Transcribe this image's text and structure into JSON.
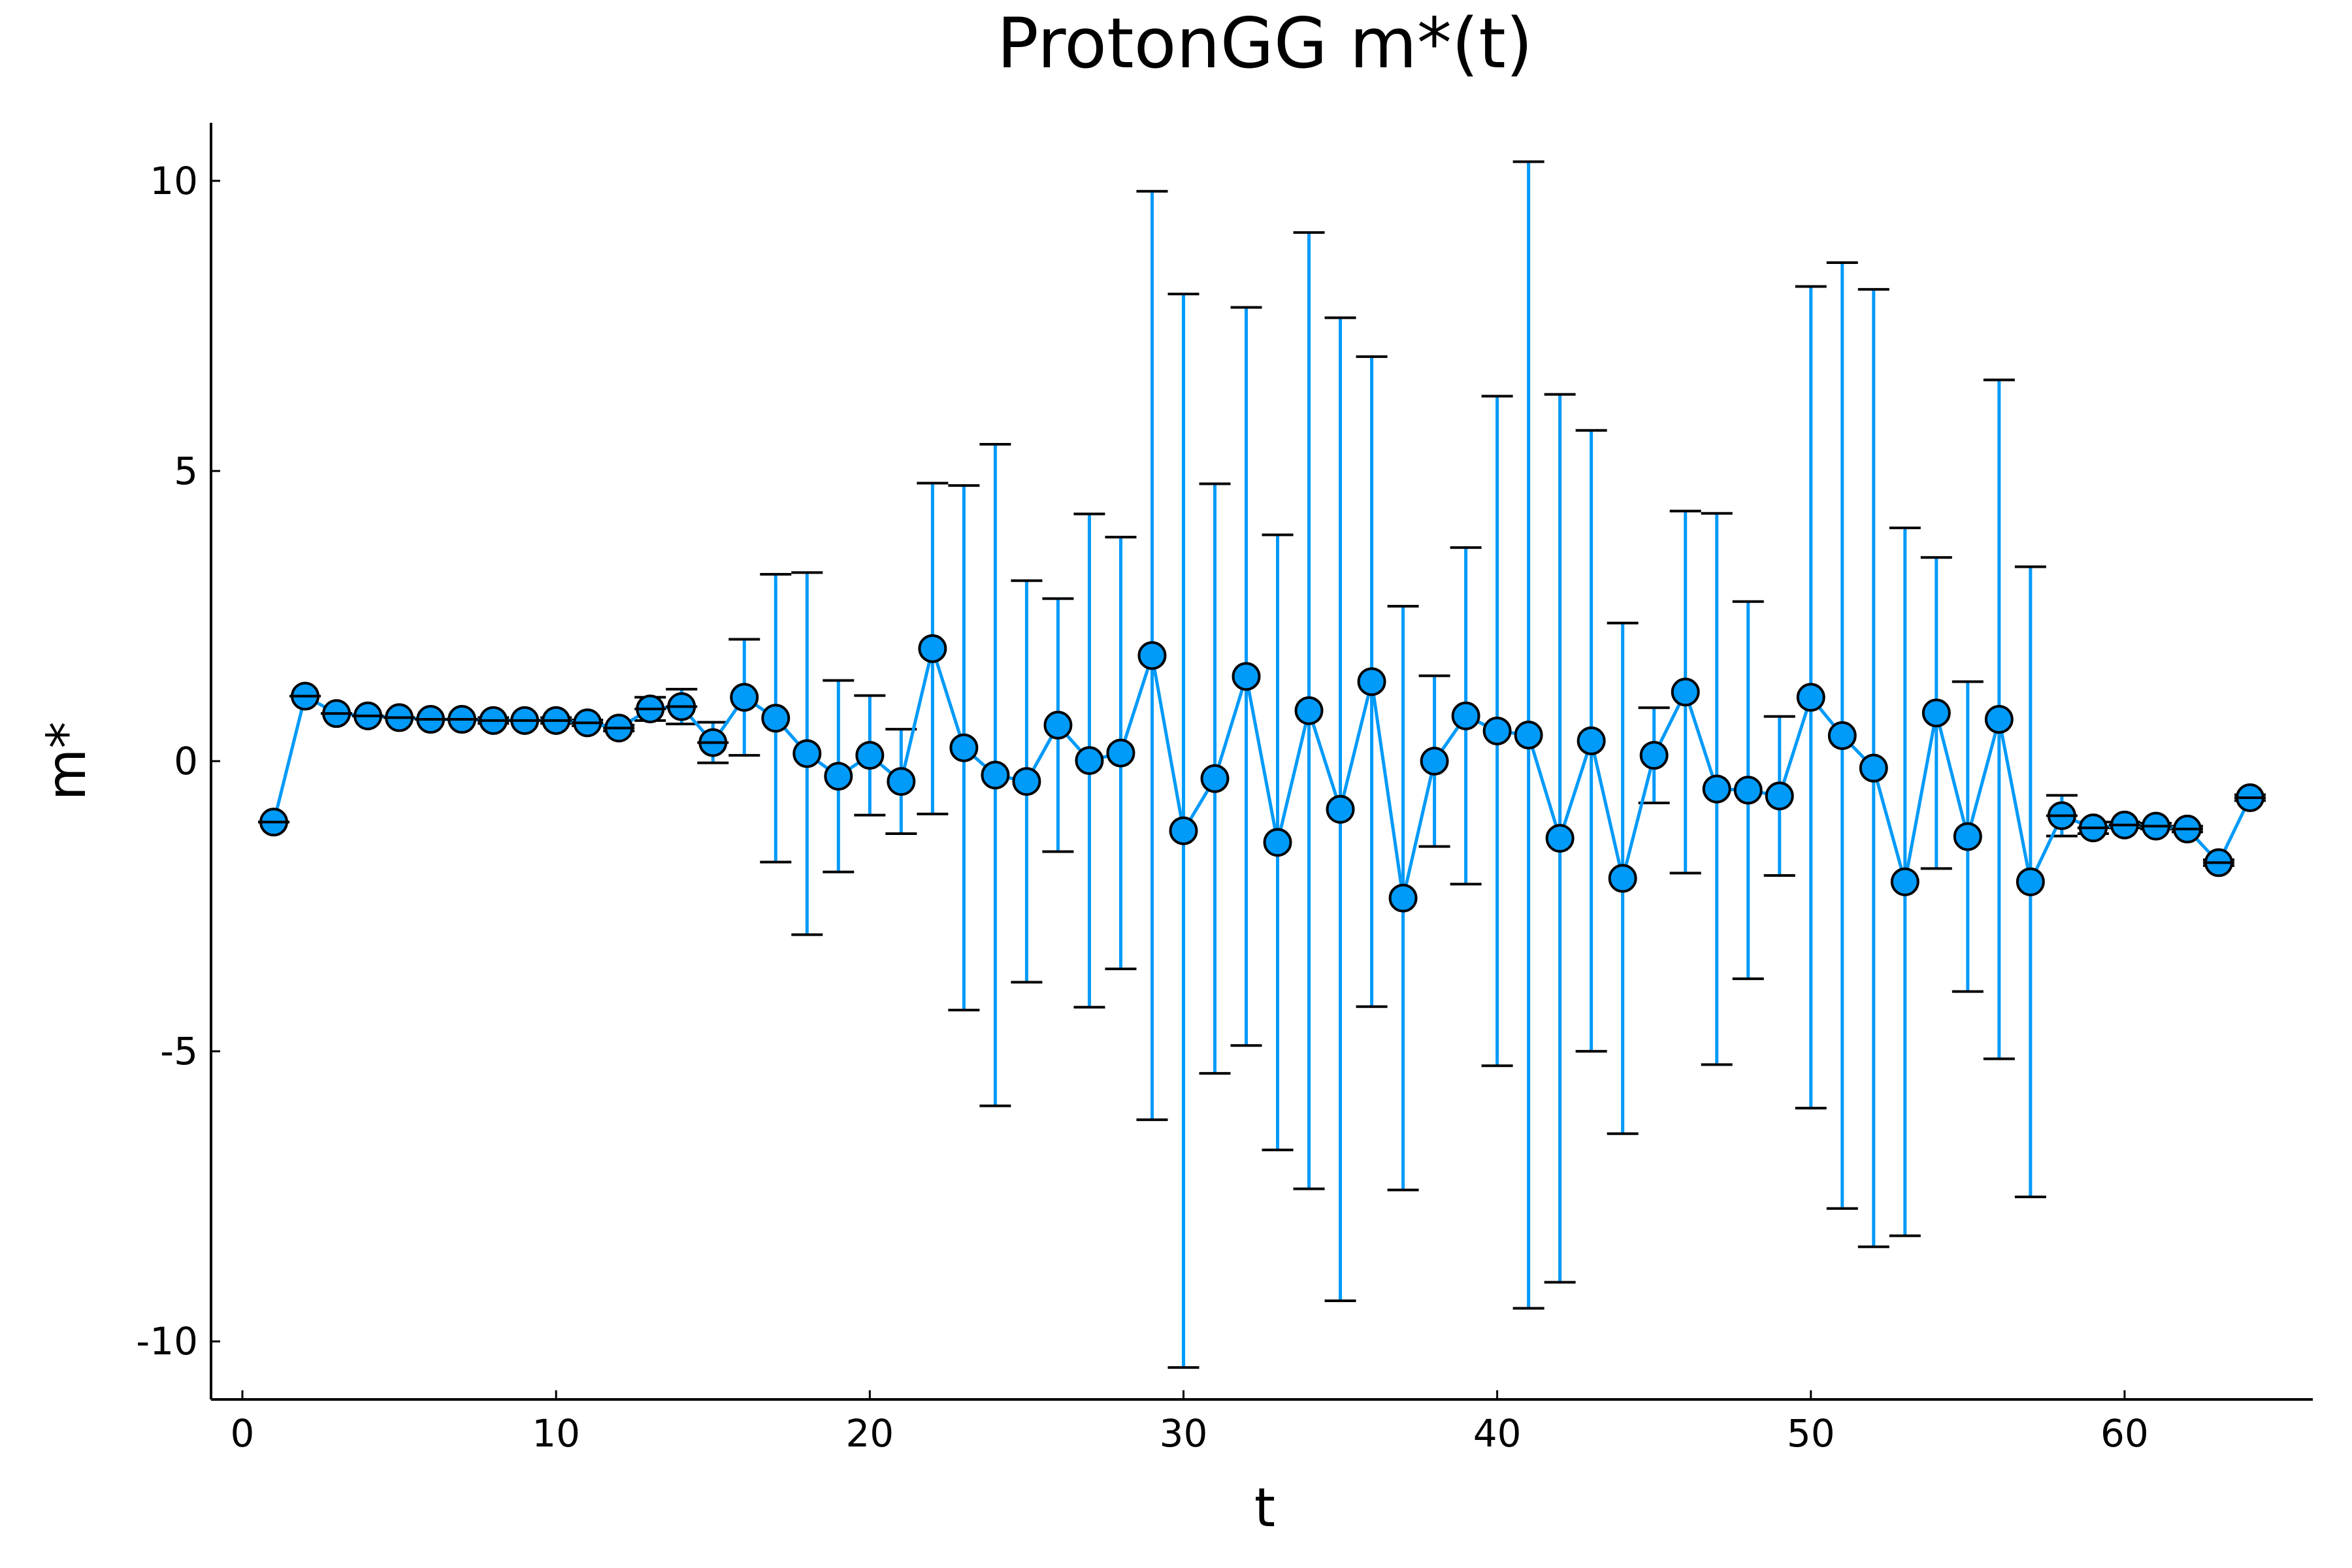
{
  "chart_data": {
    "type": "scatter",
    "title": "ProtonGG m*(t)",
    "xlabel": "t",
    "ylabel": "m*",
    "xlim": [
      -1,
      66
    ],
    "ylim": [
      -11,
      11
    ],
    "xticks": [
      0,
      10,
      20,
      30,
      40,
      50,
      60
    ],
    "yticks": [
      -10,
      -5,
      0,
      5,
      10
    ],
    "xtick_labels": [
      "0",
      "10",
      "20",
      "30",
      "40",
      "50",
      "60"
    ],
    "ytick_labels": [
      "-10",
      "-5",
      "0",
      "5",
      "10"
    ],
    "grid": false,
    "colors": {
      "series": "#009AF9",
      "marker_edge": "#000000"
    },
    "series": [
      {
        "x": [
          1,
          2,
          3,
          4,
          5,
          6,
          7,
          8,
          9,
          10,
          11,
          12,
          13,
          14,
          15,
          16,
          17,
          18,
          19,
          20,
          21,
          22,
          23,
          24,
          25,
          26,
          27,
          28,
          29,
          30,
          31,
          32,
          33,
          34,
          35,
          36,
          37,
          38,
          39,
          40,
          41,
          42,
          43,
          44,
          45,
          46,
          47,
          48,
          49,
          50,
          51,
          52,
          53,
          54,
          55,
          56,
          57,
          58,
          59,
          60,
          61,
          62,
          63,
          64
        ],
        "y": [
          -1.05,
          1.12,
          0.82,
          0.78,
          0.75,
          0.72,
          0.72,
          0.7,
          0.7,
          0.7,
          0.66,
          0.57,
          0.9,
          0.94,
          0.32,
          1.1,
          0.74,
          0.13,
          -0.26,
          0.1,
          -0.35,
          1.94,
          0.23,
          -0.24,
          -0.35,
          0.62,
          0.01,
          0.14,
          1.82,
          -1.2,
          -0.3,
          1.46,
          -1.4,
          0.87,
          -0.83,
          1.37,
          -2.36,
          0.0,
          0.78,
          0.52,
          0.45,
          -1.33,
          0.35,
          -2.02,
          0.1,
          1.19,
          -0.48,
          -0.5,
          -0.6,
          1.1,
          0.44,
          -0.12,
          -2.08,
          0.83,
          -1.3,
          0.72,
          -2.08,
          -0.94,
          -1.15,
          -1.1,
          -1.12,
          -1.17,
          -1.75,
          -0.63
        ],
        "yerr": [
          0.0,
          0.0,
          0.0,
          0.0,
          0.0,
          0.0,
          0.0,
          0.05,
          0.0,
          0.05,
          0.05,
          0.05,
          0.2,
          0.3,
          0.35,
          1.0,
          2.48,
          3.12,
          1.65,
          1.03,
          0.9,
          2.85,
          4.52,
          5.7,
          3.46,
          2.18,
          4.25,
          3.72,
          8.0,
          9.25,
          5.08,
          6.36,
          5.3,
          8.24,
          8.47,
          5.6,
          5.03,
          1.47,
          2.9,
          5.77,
          9.88,
          7.65,
          5.35,
          4.4,
          0.82,
          3.12,
          4.75,
          3.25,
          1.37,
          7.08,
          8.15,
          8.25,
          6.1,
          2.68,
          2.67,
          5.85,
          5.43,
          0.35,
          0.1,
          0.05,
          0.05,
          0.05,
          0.05,
          0.05
        ]
      }
    ]
  }
}
